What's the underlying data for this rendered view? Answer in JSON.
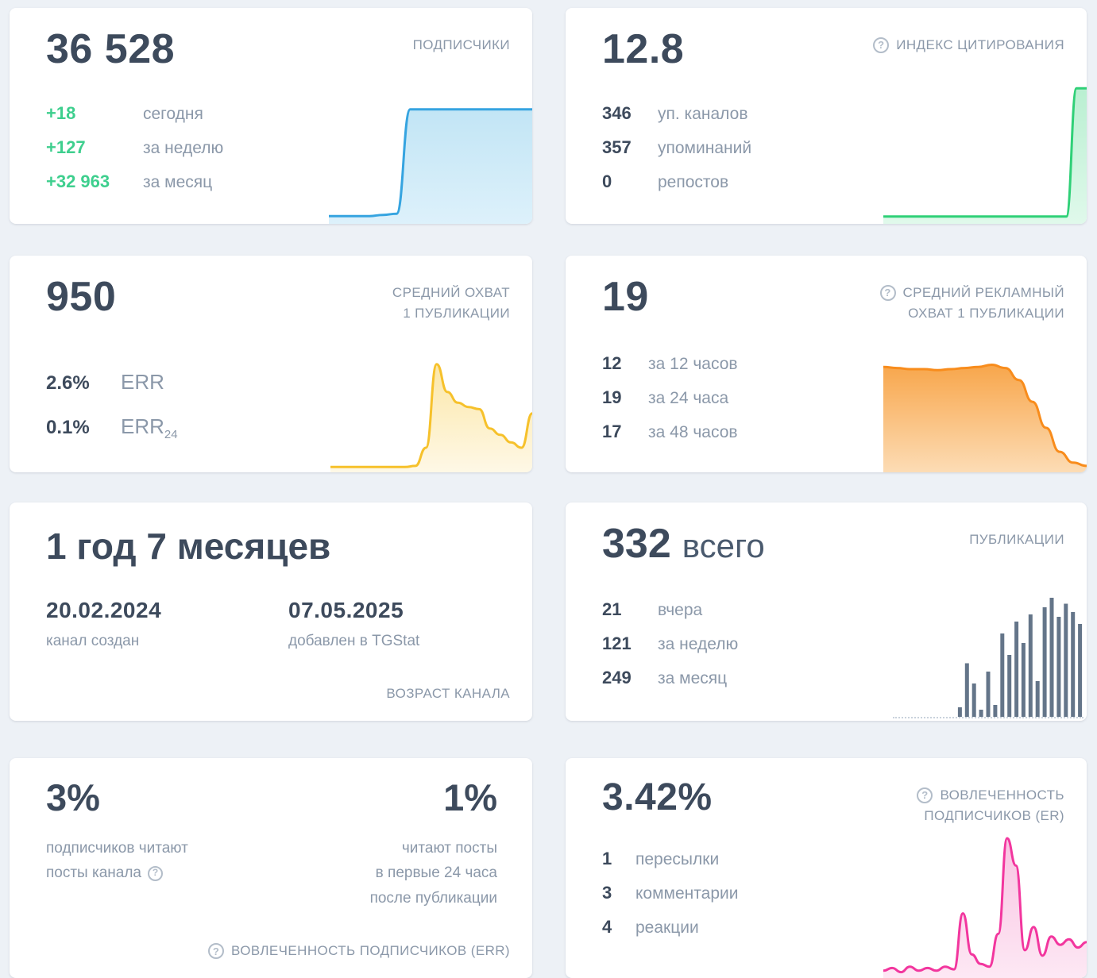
{
  "theme": {
    "page_bg": "#edf1f6",
    "card_bg": "#ffffff",
    "text_dark": "#3d4a5c",
    "text_gray": "#8b98a9",
    "green": "#3ecf8e"
  },
  "icons": {
    "question_mark": "?"
  },
  "cards": {
    "subscribers": {
      "title": "ПОДПИСЧИКИ",
      "value": "36 528",
      "rows": [
        {
          "v": "+18",
          "l": "сегодня"
        },
        {
          "v": "+127",
          "l": "за неделю"
        },
        {
          "v": "+32 963",
          "l": "за месяц"
        }
      ]
    },
    "citation": {
      "title": "ИНДЕКС ЦИТИРОВАНИЯ",
      "value": "12.8",
      "rows": [
        {
          "v": "346",
          "l": "уп. каналов"
        },
        {
          "v": "357",
          "l": "упоминаний"
        },
        {
          "v": "0",
          "l": "репостов"
        }
      ]
    },
    "avg_reach": {
      "title_lines": [
        "СРЕДНИЙ ОХВАТ",
        "1 ПУБЛИКАЦИИ"
      ],
      "value": "950",
      "rows": [
        {
          "v": "2.6%",
          "l": "ERR",
          "sub": ""
        },
        {
          "v": "0.1%",
          "l": "ERR",
          "sub": "24"
        }
      ]
    },
    "avg_ad_reach": {
      "title_lines": [
        "СРЕДНИЙ РЕКЛАМНЫЙ",
        "ОХВАТ 1 ПУБЛИКАЦИИ"
      ],
      "value": "19",
      "rows": [
        {
          "v": "12",
          "l": "за 12 часов"
        },
        {
          "v": "19",
          "l": "за 24 часа"
        },
        {
          "v": "17",
          "l": "за 48 часов"
        }
      ]
    },
    "age": {
      "value": "1 год 7 месяцев",
      "title": "ВОЗРАСТ КАНАЛА",
      "cols": [
        {
          "v": "20.02.2024",
          "l": "канал создан"
        },
        {
          "v": "07.05.2025",
          "l": "добавлен в TGStat"
        }
      ]
    },
    "publications": {
      "title": "ПУБЛИКАЦИИ",
      "value": "332",
      "value_suffix": "всего",
      "rows": [
        {
          "v": "21",
          "l": "вчера"
        },
        {
          "v": "121",
          "l": "за неделю"
        },
        {
          "v": "249",
          "l": "за месяц"
        }
      ]
    },
    "err": {
      "left_value": "3%",
      "right_value": "1%",
      "left_desc_lines": [
        "подписчиков читают",
        "посты канала"
      ],
      "right_desc_lines": [
        "читают посты",
        "в первые 24 часа",
        "после публикации"
      ],
      "title": "ВОВЛЕЧЕННОСТЬ ПОДПИСЧИКОВ (ERR)"
    },
    "er": {
      "value": "3.42%",
      "title_lines": [
        "ВОВЛЕЧЕННОСТЬ",
        "ПОДПИСЧИКОВ (ER)"
      ],
      "rows": [
        {
          "v": "1",
          "l": "пересылки"
        },
        {
          "v": "3",
          "l": "комментарии"
        },
        {
          "v": "4",
          "l": "реакции"
        }
      ]
    }
  },
  "chart_data": {
    "subscribers_spark": {
      "type": "area",
      "color": "#36a4e0",
      "fill": [
        "#c2e5f5",
        "#ddf1fb"
      ],
      "values": [
        4,
        4,
        4,
        4,
        5,
        6,
        96,
        96,
        96,
        96,
        96,
        96,
        96,
        96,
        96,
        96
      ]
    },
    "citation_spark": {
      "type": "area",
      "color": "#2fd077",
      "fill": [
        "#b9efd1",
        "#e0f9eb"
      ],
      "values": [
        3,
        3,
        3,
        3,
        3,
        3,
        3,
        3,
        3,
        3,
        3,
        3,
        3,
        3,
        3,
        3,
        3,
        3,
        3,
        97,
        97
      ]
    },
    "avg_reach_spark": {
      "type": "area",
      "color": "#f6c12b",
      "fill": [
        "#fce7a8",
        "#fef8e6"
      ],
      "values": [
        2,
        2,
        2,
        2,
        2,
        2,
        2,
        2,
        3,
        20,
        98,
        72,
        62,
        58,
        56,
        38,
        32,
        25,
        20,
        52
      ]
    },
    "avg_ad_reach_spark": {
      "type": "area",
      "color": "#f88c1c",
      "fill": [
        "#f8a64b",
        "#fcdcb5"
      ],
      "values": [
        94,
        93,
        92,
        92,
        91,
        92,
        93,
        94,
        96,
        93,
        82,
        62,
        38,
        16,
        6,
        3
      ]
    },
    "publications_bars": {
      "type": "bar",
      "color": "#647589",
      "values": [
        0,
        0,
        0,
        0,
        0,
        0,
        0,
        0,
        0,
        8,
        45,
        28,
        6,
        38,
        10,
        70,
        52,
        80,
        62,
        86,
        30,
        92,
        100,
        84,
        95,
        88,
        78
      ]
    },
    "er_spark": {
      "type": "area",
      "color": "#f2369e",
      "fill": [
        "#f9c3e2",
        "#fde8f4"
      ],
      "values": [
        3,
        5,
        2,
        6,
        3,
        5,
        3,
        6,
        4,
        45,
        15,
        8,
        6,
        30,
        100,
        80,
        18,
        35,
        14,
        28,
        22,
        26,
        20,
        24
      ]
    }
  }
}
